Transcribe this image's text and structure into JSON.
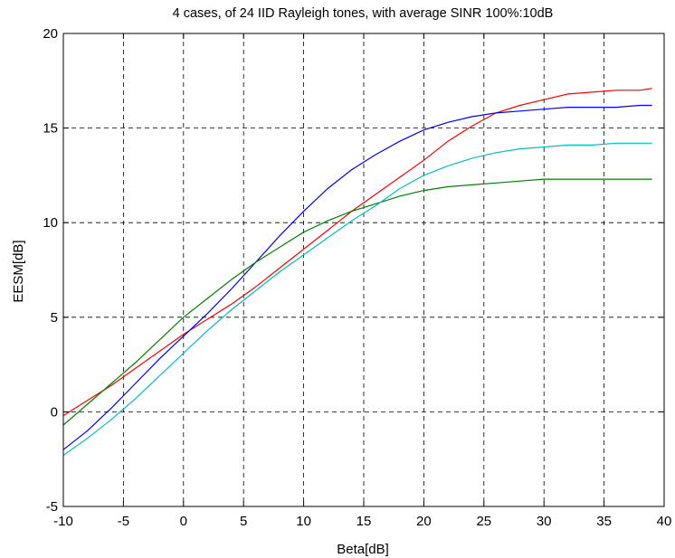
{
  "chart_data": {
    "type": "line",
    "title": "4 cases, of 24 IID Rayleigh tones, with average SINR 100%:10dB",
    "xlabel": "Beta[dB]",
    "ylabel": "EESM[dB]",
    "xlim": [
      -10,
      40
    ],
    "ylim": [
      -5,
      20
    ],
    "xticks": [
      -10,
      -5,
      0,
      5,
      10,
      15,
      20,
      25,
      30,
      35,
      40
    ],
    "yticks": [
      -5,
      0,
      5,
      10,
      15,
      20
    ],
    "xtick_labels": [
      "-10",
      "-5",
      "0",
      "5",
      "10",
      "15",
      "20",
      "25",
      "30",
      "35",
      "40"
    ],
    "ytick_labels": [
      "-5",
      "0",
      "5",
      "10",
      "15",
      "20"
    ],
    "grid": true,
    "legend": false,
    "series": [
      {
        "color": "#ff0000",
        "x": [
          -10,
          -8,
          -6,
          -4,
          -2,
          0,
          2,
          4,
          6,
          8,
          10,
          12,
          14,
          16,
          18,
          20,
          22,
          24,
          26,
          28,
          30,
          32,
          34,
          36,
          38,
          39
        ],
        "y": [
          -0.2,
          0.6,
          1.4,
          2.3,
          3.2,
          4.1,
          4.9,
          5.7,
          6.6,
          7.6,
          8.6,
          9.6,
          10.6,
          11.5,
          12.4,
          13.3,
          14.3,
          15.1,
          15.8,
          16.2,
          16.5,
          16.8,
          16.9,
          17.0,
          17.0,
          17.1
        ]
      },
      {
        "color": "#0000ff",
        "x": [
          -10,
          -8,
          -6,
          -4,
          -2,
          0,
          2,
          4,
          6,
          8,
          10,
          12,
          14,
          16,
          18,
          20,
          22,
          24,
          26,
          28,
          30,
          32,
          34,
          36,
          38,
          39
        ],
        "y": [
          -2.0,
          -1.0,
          0.2,
          1.5,
          2.8,
          4.0,
          5.2,
          6.5,
          7.9,
          9.3,
          10.6,
          11.8,
          12.8,
          13.6,
          14.3,
          14.9,
          15.3,
          15.6,
          15.8,
          15.9,
          16.0,
          16.1,
          16.1,
          16.1,
          16.2,
          16.2
        ]
      },
      {
        "color": "#008000",
        "x": [
          -10,
          -8,
          -6,
          -4,
          -2,
          0,
          2,
          4,
          6,
          8,
          10,
          12,
          14,
          16,
          18,
          20,
          22,
          24,
          26,
          28,
          30,
          32,
          34,
          36,
          38,
          39
        ],
        "y": [
          -0.7,
          0.4,
          1.5,
          2.6,
          3.8,
          5.0,
          6.0,
          7.0,
          7.9,
          8.7,
          9.5,
          10.1,
          10.6,
          11.0,
          11.4,
          11.7,
          11.9,
          12.0,
          12.1,
          12.2,
          12.3,
          12.3,
          12.3,
          12.3,
          12.3,
          12.3
        ]
      },
      {
        "color": "#00bfbf",
        "x": [
          -10,
          -8,
          -6,
          -4,
          -2,
          0,
          2,
          4,
          6,
          8,
          10,
          12,
          14,
          16,
          18,
          20,
          22,
          24,
          26,
          28,
          30,
          32,
          34,
          36,
          38,
          39
        ],
        "y": [
          -2.3,
          -1.4,
          -0.4,
          0.7,
          1.9,
          3.1,
          4.3,
          5.4,
          6.4,
          7.4,
          8.3,
          9.2,
          10.1,
          10.9,
          11.8,
          12.5,
          13.0,
          13.4,
          13.7,
          13.9,
          14.0,
          14.1,
          14.1,
          14.2,
          14.2,
          14.2
        ]
      }
    ]
  }
}
